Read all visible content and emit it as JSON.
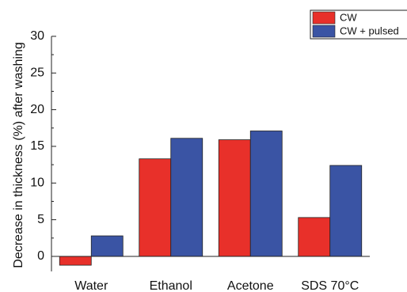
{
  "chart_data": {
    "type": "bar",
    "ylabel": "Decrease in thickness (%) after washing",
    "xlabel": "",
    "categories": [
      "Water",
      "Ethanol",
      "Acetone",
      "SDS 70°C"
    ],
    "series": [
      {
        "name": "CW",
        "values": [
          -1.2,
          13.3,
          15.9,
          5.3
        ],
        "color": "#e8302a"
      },
      {
        "name": "CW + pulsed",
        "values": [
          2.8,
          16.1,
          17.1,
          12.4
        ],
        "color": "#3a54a4"
      }
    ],
    "ylim": [
      -2,
      30
    ],
    "yticks": [
      "0",
      "5",
      "10",
      "15",
      "20",
      "25",
      "30"
    ],
    "grid": false,
    "legend_position": "top-right"
  }
}
